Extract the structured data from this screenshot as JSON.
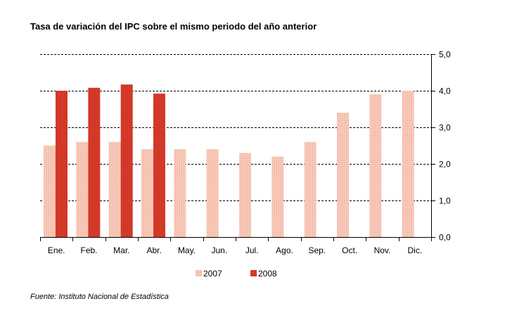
{
  "title": "Tasa de variación del IPC sobre el mismo periodo del año anterior",
  "source": "Fuente: Instituto Nacional de Estadística",
  "colors": {
    "s2007": "#f6c3b0",
    "s2008": "#d63a2a",
    "grid": "#000000"
  },
  "chart_data": {
    "type": "bar",
    "title": "Tasa de variación del IPC sobre el mismo periodo del año anterior",
    "categories": [
      "Ene.",
      "Feb.",
      "Mar.",
      "Abr.",
      "May.",
      "Jun.",
      "Jul.",
      "Ago.",
      "Sep.",
      "Oct.",
      "Nov.",
      "Dic."
    ],
    "series": [
      {
        "name": "2007",
        "values": [
          2.5,
          2.6,
          2.6,
          2.4,
          2.4,
          2.4,
          2.3,
          2.2,
          2.6,
          3.4,
          3.9,
          4.0
        ]
      },
      {
        "name": "2008",
        "values": [
          4.0,
          4.08,
          4.17,
          3.92,
          null,
          null,
          null,
          null,
          null,
          null,
          null,
          null
        ]
      }
    ],
    "ylim": [
      0,
      5
    ],
    "yticks": [
      "0,0",
      "1,0",
      "2,0",
      "3,0",
      "4,0",
      "5,0"
    ],
    "y_axis_side": "right",
    "grid": true,
    "legend": "bottom-center"
  }
}
